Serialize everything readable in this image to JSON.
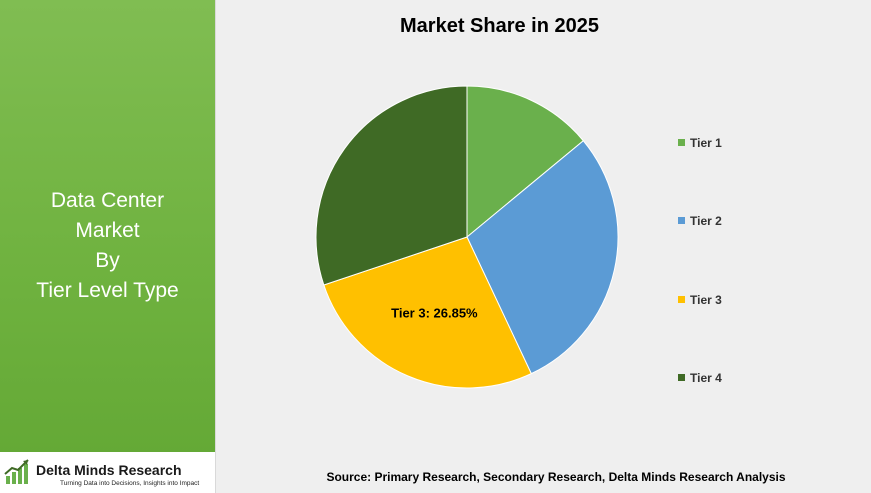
{
  "panel": {
    "title_lines": [
      "Data Center",
      "Market",
      "By",
      "Tier Level Type"
    ]
  },
  "logo": {
    "name": "Delta Minds Research",
    "tagline": "Turning Data into Decisions, Insights into Impact"
  },
  "source_note": "Source: Primary Research, Secondary Research, Delta Minds Research Analysis",
  "chart_data": {
    "type": "pie",
    "title": "Market Share in 2025",
    "categories": [
      "Tier 1",
      "Tier 2",
      "Tier 3",
      "Tier 4"
    ],
    "values": [
      14.0,
      29.0,
      26.85,
      30.15
    ],
    "unit": "%",
    "colors": [
      "#6ab04c",
      "#5b9bd5",
      "#ffc000",
      "#3f6a25"
    ],
    "data_labels": [
      {
        "category": "Tier 3",
        "text": "Tier 3: 26.85%"
      }
    ],
    "legend_position": "right"
  }
}
